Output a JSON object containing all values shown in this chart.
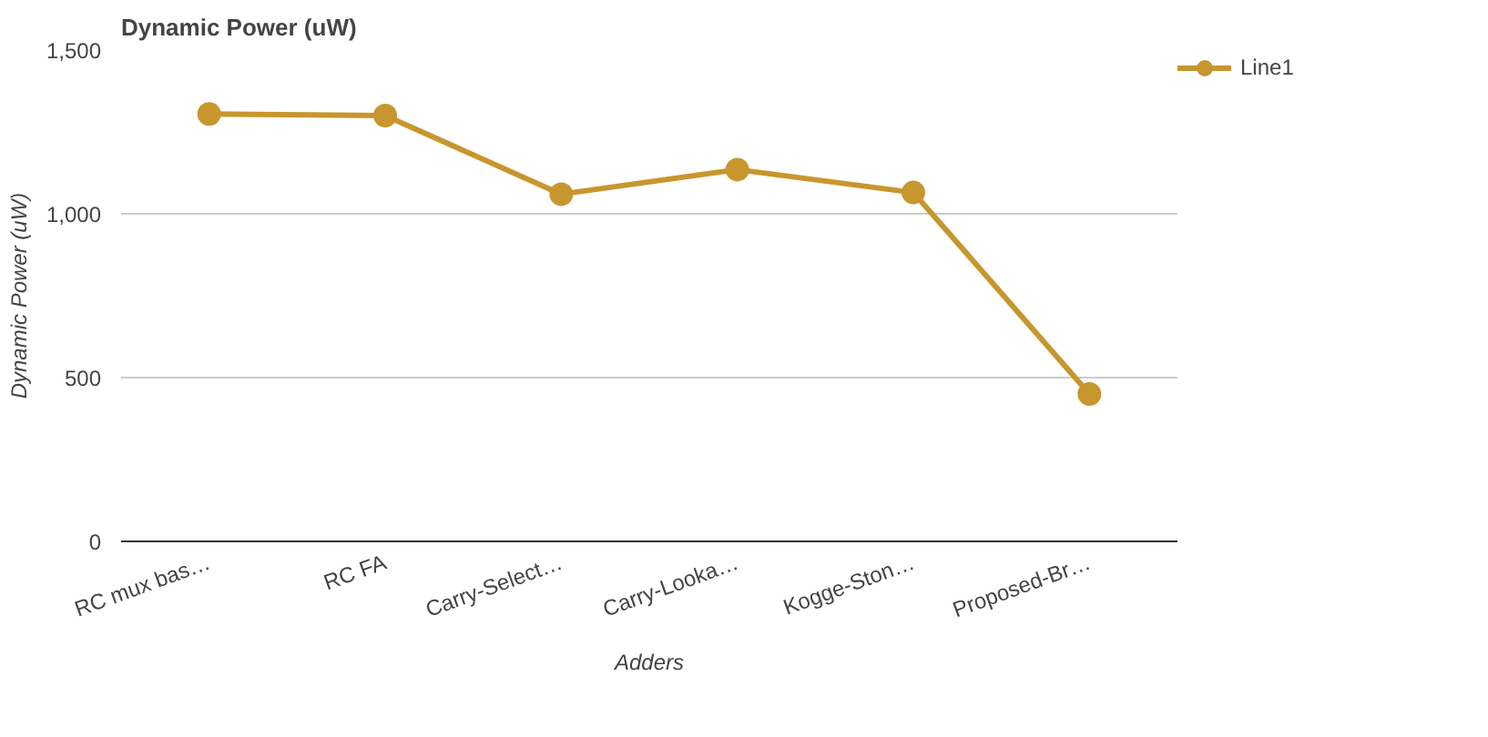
{
  "chart_data": {
    "type": "line",
    "title": "Dynamic Power (uW)",
    "xlabel": "Adders",
    "ylabel": "Dynamic Power (uW)",
    "categories": [
      "RC mux bas…",
      "RC FA",
      "Carry-Select…",
      "Carry-Looka…",
      "Kogge-Ston…",
      "Proposed-Br…"
    ],
    "series": [
      {
        "name": "Line1",
        "color": "#c8962e",
        "values": [
          1305,
          1300,
          1060,
          1135,
          1065,
          450
        ]
      }
    ],
    "ylim": [
      0,
      1500
    ],
    "yticks": [
      0,
      {
        "value": 500,
        "label": "500"
      },
      {
        "value": 1000,
        "label": "1,000"
      },
      {
        "value": 1500,
        "label": "1,500"
      }
    ],
    "grid": "y",
    "legend": "top right",
    "marker": "circle",
    "line_style": "solid"
  }
}
